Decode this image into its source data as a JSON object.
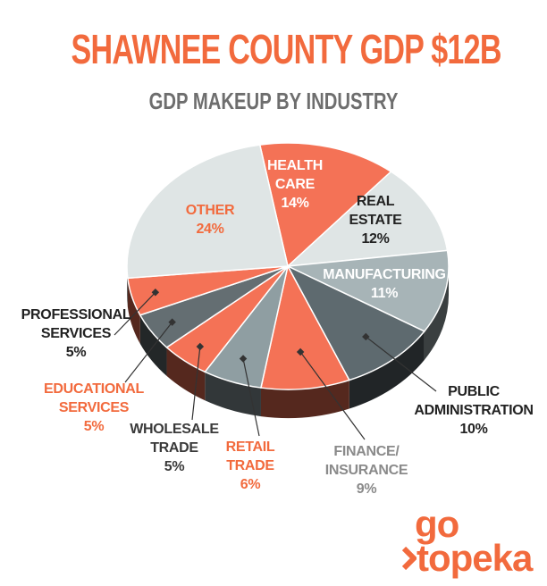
{
  "chart_data": {
    "type": "pie",
    "title": "SHAWNEE COUNTY GDP $12B",
    "subtitle": "GDP MAKEUP BY INDUSTRY",
    "categories": [
      "HEALTH CARE",
      "REAL ESTATE",
      "MANUFACTURING",
      "PUBLIC ADMINISTRATION",
      "FINANCE/ INSURANCE",
      "RETAIL TRADE",
      "WHOLESALE TRADE",
      "EDUCATIONAL SERVICES",
      "PROFESSIONAL SERVICES",
      "OTHER"
    ],
    "values": [
      14,
      12,
      11,
      10,
      9,
      6,
      5,
      5,
      5,
      24
    ],
    "value_labels": [
      "14%",
      "12%",
      "11%",
      "10%",
      "9%",
      "6%",
      "5%",
      "5%",
      "5%",
      "24%"
    ],
    "colors": [
      "#f47256",
      "#dfe5e5",
      "#a7b4b7",
      "#5e6a6f",
      "#f47256",
      "#8f9ea2",
      "#f47256",
      "#646e72",
      "#f47256",
      "#dfe5e5"
    ],
    "logo": {
      "top": "go",
      "bottom": "topeka"
    }
  }
}
